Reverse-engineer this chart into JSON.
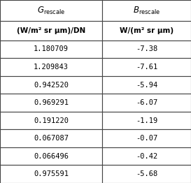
{
  "col1_header": "G",
  "col1_header_sub": "rescale",
  "col2_header": "B",
  "col2_header_sub": "rescale",
  "col1_unit": "(W/m² sr μm)/DN",
  "col2_unit": "W/(m² sr μm)",
  "col1_values": [
    "1.180709",
    "1.209843",
    "0.942520",
    "0.969291",
    "0.191220",
    "0.067087",
    "0.066496",
    "0.975591"
  ],
  "col2_values": [
    "-7.38",
    "-7.61",
    "-5.94",
    "-6.07",
    "-1.19",
    "-0.07",
    "-0.42",
    "-5.68"
  ],
  "border_color": "#444444",
  "font_size_header": 8.5,
  "font_size_unit": 7.5,
  "font_size_data": 7.5,
  "fig_width": 2.73,
  "fig_height": 2.62,
  "dpi": 100
}
